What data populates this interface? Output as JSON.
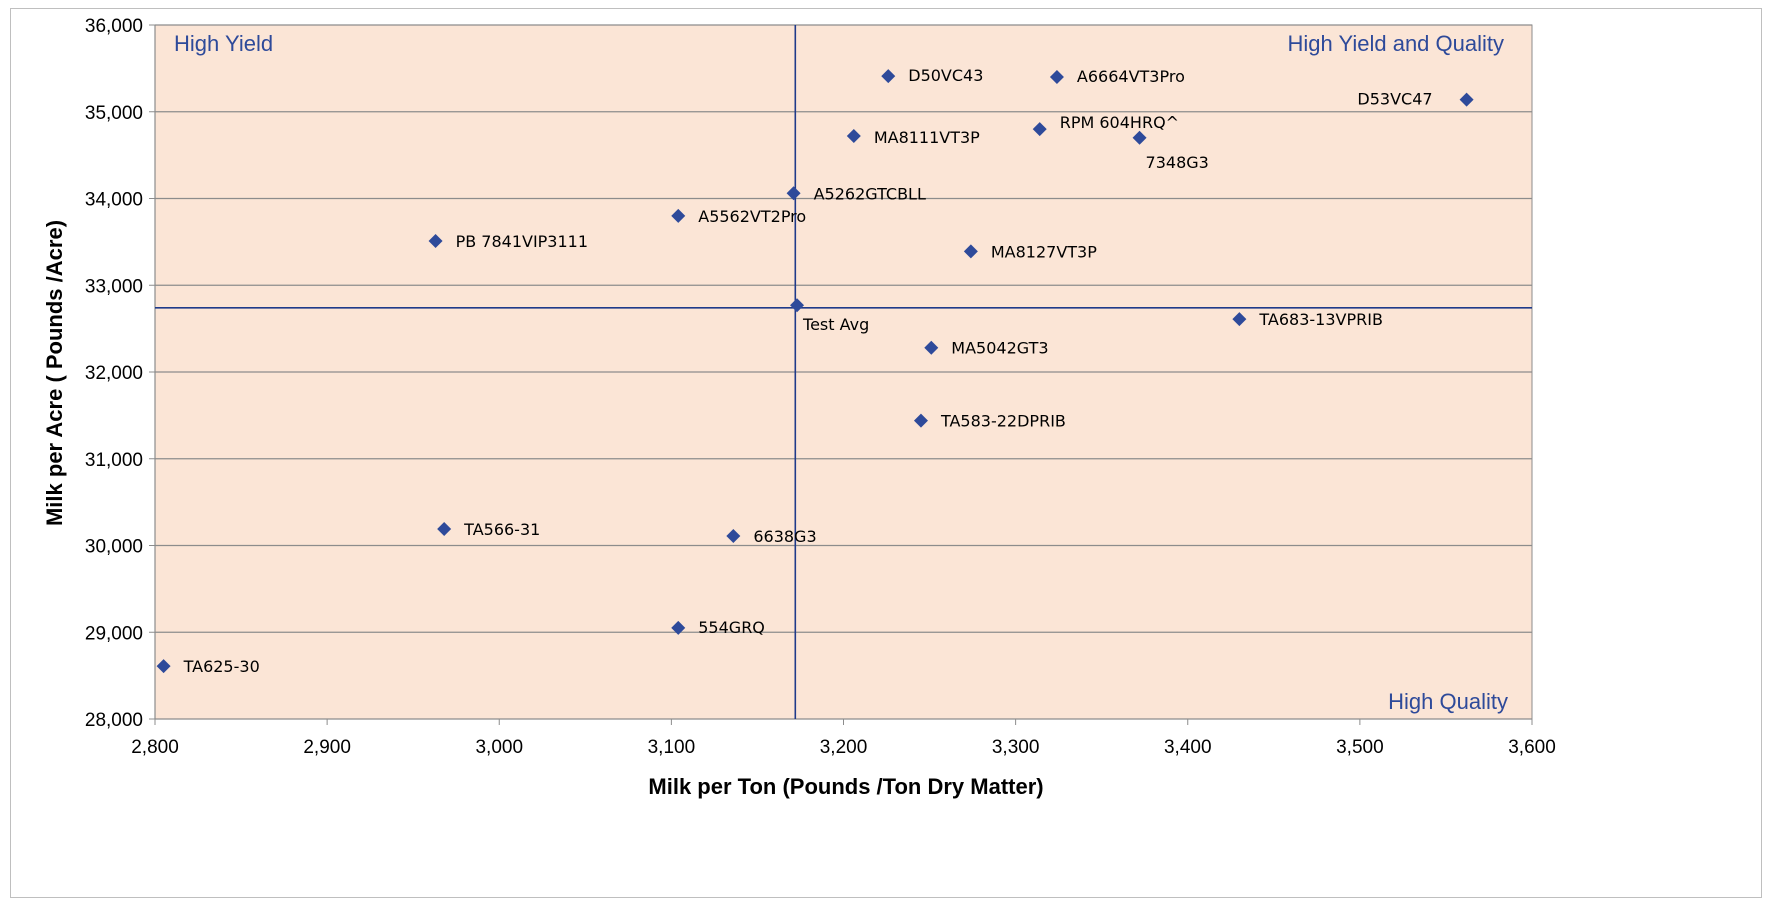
{
  "chart_data": {
    "type": "scatter",
    "title": "",
    "xlabel": "Milk per Ton (Pounds /Ton Dry Matter)",
    "ylabel": "Milk per Acre ( Pounds /Acre)",
    "xlim": [
      2800,
      3600
    ],
    "ylim": [
      28000,
      36000
    ],
    "x_ticks": [
      2800,
      2900,
      3000,
      3100,
      3200,
      3300,
      3400,
      3500,
      3600
    ],
    "y_ticks": [
      28000,
      29000,
      30000,
      31000,
      32000,
      33000,
      34000,
      35000,
      36000
    ],
    "x_tick_labels": [
      "2,800",
      "2,900",
      "3,000",
      "3,100",
      "3,200",
      "3,300",
      "3,400",
      "3,500",
      "3,600"
    ],
    "y_tick_labels": [
      "28,000",
      "29,000",
      "30,000",
      "31,000",
      "32,000",
      "33,000",
      "34,000",
      "35,000",
      "36,000"
    ],
    "grid": "horizontal",
    "plot_background": "#fbe5d6",
    "marker_color": "#2e4a9a",
    "reference_lines": {
      "x": 3172,
      "y": 32740
    },
    "quadrant_labels": {
      "top_left": "High Yield",
      "top_right": "High Yield and Quality",
      "bottom_right": "High Quality"
    },
    "points": [
      {
        "label": "D50VC43",
        "x": 3226,
        "y": 35410
      },
      {
        "label": "A6664VT3Pro",
        "x": 3324,
        "y": 35400
      },
      {
        "label": "D53VC47",
        "x": 3562,
        "y": 35140
      },
      {
        "label": "RPM 604HRQ^",
        "x": 3314,
        "y": 34800
      },
      {
        "label": "MA8111VT3P",
        "x": 3206,
        "y": 34720
      },
      {
        "label": "7348G3",
        "x": 3372,
        "y": 34700
      },
      {
        "label": "A5262GTCBLL",
        "x": 3171,
        "y": 34060
      },
      {
        "label": "A5562VT2Pro",
        "x": 3104,
        "y": 33800
      },
      {
        "label": "PB 7841VIP3111",
        "x": 2963,
        "y": 33510
      },
      {
        "label": "MA8127VT3P",
        "x": 3274,
        "y": 33390
      },
      {
        "label": "Test Avg",
        "x": 3173,
        "y": 32770
      },
      {
        "label": "TA683-13VPRIB",
        "x": 3430,
        "y": 32610
      },
      {
        "label": "MA5042GT3",
        "x": 3251,
        "y": 32280
      },
      {
        "label": "TA583-22DPRIB",
        "x": 3245,
        "y": 31440
      },
      {
        "label": "TA566-31",
        "x": 2968,
        "y": 30190
      },
      {
        "label": "6638G3",
        "x": 3136,
        "y": 30110
      },
      {
        "label": "554GRQ",
        "x": 3104,
        "y": 29050
      },
      {
        "label": "TA625-30",
        "x": 2805,
        "y": 28610
      }
    ]
  }
}
